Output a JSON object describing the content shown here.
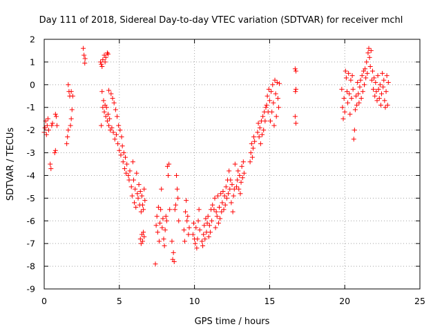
{
  "chart_data": {
    "type": "scatter",
    "title": "Day 111 of 2018, Sidereal Day-to-day VTEC variation (SDTVAR) for receiver mchl",
    "xlabel": "GPS time / hours",
    "ylabel": "SDTVAR / TECUs",
    "xlim": [
      0,
      25
    ],
    "ylim": [
      -9,
      2
    ],
    "xticks": [
      0,
      5,
      10,
      15,
      20,
      25
    ],
    "yticks": [
      2,
      1,
      0,
      -1,
      -2,
      -3,
      -4,
      -5,
      -6,
      -7,
      -8,
      -9
    ],
    "grid": true,
    "marker": "plus",
    "color": "#ff0000",
    "series": [
      {
        "name": "SDTVAR",
        "points": [
          [
            0.0,
            -2.1
          ],
          [
            0.05,
            -1.9
          ],
          [
            0.1,
            -1.6
          ],
          [
            0.15,
            -2.2
          ],
          [
            0.2,
            -1.8
          ],
          [
            0.25,
            -1.5
          ],
          [
            0.3,
            -2.0
          ],
          [
            0.4,
            -3.5
          ],
          [
            0.45,
            -3.7
          ],
          [
            0.5,
            -1.8
          ],
          [
            0.55,
            -1.7
          ],
          [
            0.7,
            -3.0
          ],
          [
            0.75,
            -2.9
          ],
          [
            0.75,
            -1.3
          ],
          [
            0.8,
            -1.4
          ],
          [
            0.85,
            -1.8
          ],
          [
            1.5,
            -2.6
          ],
          [
            1.55,
            -2.3
          ],
          [
            1.6,
            -2.0
          ],
          [
            1.6,
            0.0
          ],
          [
            1.65,
            -0.3
          ],
          [
            1.7,
            -0.5
          ],
          [
            1.75,
            -1.8
          ],
          [
            1.8,
            -1.5
          ],
          [
            1.8,
            -0.3
          ],
          [
            1.85,
            -1.1
          ],
          [
            1.9,
            -0.5
          ],
          [
            2.6,
            1.6
          ],
          [
            2.65,
            1.3
          ],
          [
            2.7,
            0.95
          ],
          [
            2.72,
            1.15
          ],
          [
            3.75,
            1.0
          ],
          [
            3.8,
            0.9
          ],
          [
            3.85,
            0.8
          ],
          [
            3.9,
            1.1
          ],
          [
            4.0,
            1.3
          ],
          [
            4.05,
            1.0
          ],
          [
            4.1,
            1.2
          ],
          [
            4.2,
            1.4
          ],
          [
            4.25,
            1.35
          ],
          [
            3.8,
            -1.8
          ],
          [
            3.85,
            -0.3
          ],
          [
            3.9,
            -1.0
          ],
          [
            3.95,
            -0.7
          ],
          [
            4.0,
            -1.2
          ],
          [
            4.05,
            -0.9
          ],
          [
            4.1,
            -1.4
          ],
          [
            4.15,
            -1.0
          ],
          [
            4.2,
            -1.6
          ],
          [
            4.25,
            -1.3
          ],
          [
            4.3,
            -1.8
          ],
          [
            4.3,
            -0.25
          ],
          [
            4.35,
            -1.5
          ],
          [
            4.4,
            -2.0
          ],
          [
            4.45,
            -0.4
          ],
          [
            4.5,
            -1.9
          ],
          [
            4.55,
            -0.6
          ],
          [
            4.6,
            -2.1
          ],
          [
            4.65,
            -0.8
          ],
          [
            4.7,
            -2.4
          ],
          [
            4.75,
            -1.1
          ],
          [
            4.8,
            -2.2
          ],
          [
            4.85,
            -1.4
          ],
          [
            4.9,
            -2.6
          ],
          [
            4.95,
            -1.8
          ],
          [
            5.0,
            -2.9
          ],
          [
            5.05,
            -2.0
          ],
          [
            5.1,
            -3.1
          ],
          [
            5.15,
            -2.3
          ],
          [
            5.2,
            -2.7
          ],
          [
            5.25,
            -3.4
          ],
          [
            5.3,
            -3.0
          ],
          [
            5.35,
            -3.7
          ],
          [
            5.4,
            -3.2
          ],
          [
            5.45,
            -3.9
          ],
          [
            5.5,
            -3.5
          ],
          [
            5.6,
            -4.0
          ],
          [
            5.65,
            -4.2
          ],
          [
            5.7,
            -3.8
          ],
          [
            5.8,
            -4.5
          ],
          [
            5.85,
            -4.9
          ],
          [
            5.9,
            -3.4
          ],
          [
            5.95,
            -4.2
          ],
          [
            6.0,
            -5.2
          ],
          [
            6.05,
            -4.6
          ],
          [
            6.1,
            -5.4
          ],
          [
            6.15,
            -3.9
          ],
          [
            6.2,
            -4.8
          ],
          [
            6.25,
            -5.0
          ],
          [
            6.3,
            -4.4
          ],
          [
            6.35,
            -5.3
          ],
          [
            6.4,
            -4.7
          ],
          [
            6.45,
            -5.6
          ],
          [
            6.5,
            -4.9
          ],
          [
            6.55,
            -5.3
          ],
          [
            6.6,
            -5.5
          ],
          [
            6.65,
            -4.6
          ],
          [
            6.7,
            -5.1
          ],
          [
            6.4,
            -6.8
          ],
          [
            6.45,
            -7.0
          ],
          [
            6.5,
            -6.6
          ],
          [
            6.55,
            -6.9
          ],
          [
            6.6,
            -6.5
          ],
          [
            6.65,
            -6.7
          ],
          [
            7.4,
            -7.9
          ],
          [
            7.45,
            -6.2
          ],
          [
            7.5,
            -5.8
          ],
          [
            7.55,
            -6.5
          ],
          [
            7.6,
            -5.4
          ],
          [
            7.65,
            -6.9
          ],
          [
            7.7,
            -6.1
          ],
          [
            7.75,
            -5.5
          ],
          [
            7.8,
            -4.6
          ],
          [
            7.85,
            -6.3
          ],
          [
            7.9,
            -5.9
          ],
          [
            7.95,
            -6.8
          ],
          [
            8.0,
            -7.1
          ],
          [
            8.05,
            -6.4
          ],
          [
            8.1,
            -5.8
          ],
          [
            8.15,
            -6.0
          ],
          [
            8.2,
            -3.6
          ],
          [
            8.25,
            -4.0
          ],
          [
            8.3,
            -3.5
          ],
          [
            8.35,
            -5.5
          ],
          [
            8.5,
            -6.9
          ],
          [
            8.55,
            -7.7
          ],
          [
            8.6,
            -7.4
          ],
          [
            8.65,
            -7.8
          ],
          [
            8.7,
            -5.5
          ],
          [
            8.75,
            -5.3
          ],
          [
            8.8,
            -4.0
          ],
          [
            8.85,
            -4.6
          ],
          [
            8.9,
            -5.0
          ],
          [
            8.95,
            -6.0
          ],
          [
            9.3,
            -6.4
          ],
          [
            9.35,
            -6.9
          ],
          [
            9.4,
            -5.6
          ],
          [
            9.45,
            -5.1
          ],
          [
            9.5,
            -6.0
          ],
          [
            9.55,
            -5.8
          ],
          [
            9.6,
            -6.6
          ],
          [
            9.65,
            -6.3
          ],
          [
            9.9,
            -6.6
          ],
          [
            9.95,
            -6.1
          ],
          [
            10.0,
            -6.8
          ],
          [
            10.05,
            -7.0
          ],
          [
            10.1,
            -6.3
          ],
          [
            10.15,
            -7.2
          ],
          [
            10.2,
            -6.8
          ],
          [
            10.25,
            -6.0
          ],
          [
            10.3,
            -5.5
          ],
          [
            10.35,
            -6.4
          ],
          [
            10.5,
            -6.9
          ],
          [
            10.55,
            -7.1
          ],
          [
            10.6,
            -6.6
          ],
          [
            10.65,
            -6.2
          ],
          [
            10.7,
            -6.8
          ],
          [
            10.75,
            -5.9
          ],
          [
            10.8,
            -6.5
          ],
          [
            10.85,
            -6.1
          ],
          [
            10.9,
            -5.8
          ],
          [
            10.95,
            -6.7
          ],
          [
            11.0,
            -6.2
          ],
          [
            11.05,
            -6.5
          ],
          [
            11.1,
            -5.5
          ],
          [
            11.15,
            -6.0
          ],
          [
            11.2,
            -5.3
          ],
          [
            11.3,
            -5.5
          ],
          [
            11.35,
            -5.0
          ],
          [
            11.4,
            -6.3
          ],
          [
            11.45,
            -5.6
          ],
          [
            11.5,
            -5.8
          ],
          [
            11.55,
            -4.9
          ],
          [
            11.6,
            -6.1
          ],
          [
            11.65,
            -5.4
          ],
          [
            11.7,
            -5.9
          ],
          [
            11.75,
            -4.8
          ],
          [
            11.8,
            -5.6
          ],
          [
            11.85,
            -5.2
          ],
          [
            11.9,
            -4.7
          ],
          [
            11.95,
            -5.5
          ],
          [
            12.0,
            -4.9
          ],
          [
            12.05,
            -5.3
          ],
          [
            12.1,
            -4.5
          ],
          [
            12.15,
            -5.0
          ],
          [
            12.2,
            -4.2
          ],
          [
            12.25,
            -4.8
          ],
          [
            12.3,
            -3.8
          ],
          [
            12.35,
            -4.6
          ],
          [
            12.4,
            -4.2
          ],
          [
            12.45,
            -5.2
          ],
          [
            12.5,
            -4.4
          ],
          [
            12.55,
            -5.6
          ],
          [
            12.6,
            -4.9
          ],
          [
            12.65,
            -4.6
          ],
          [
            12.7,
            -3.5
          ],
          [
            12.8,
            -4.5
          ],
          [
            12.85,
            -4.2
          ],
          [
            12.9,
            -3.8
          ],
          [
            12.95,
            -4.6
          ],
          [
            13.0,
            -4.0
          ],
          [
            13.05,
            -4.8
          ],
          [
            13.1,
            -4.3
          ],
          [
            13.15,
            -3.6
          ],
          [
            13.2,
            -4.1
          ],
          [
            13.25,
            -3.4
          ],
          [
            13.3,
            -3.9
          ],
          [
            13.7,
            -3.4
          ],
          [
            13.75,
            -3.0
          ],
          [
            13.8,
            -2.6
          ],
          [
            13.85,
            -3.2
          ],
          [
            13.9,
            -2.8
          ],
          [
            13.95,
            -2.3
          ],
          [
            14.0,
            -2.5
          ],
          [
            14.2,
            -2.1
          ],
          [
            14.25,
            -1.7
          ],
          [
            14.3,
            -2.3
          ],
          [
            14.35,
            -1.9
          ],
          [
            14.4,
            -2.6
          ],
          [
            14.45,
            -1.6
          ],
          [
            14.5,
            -2.2
          ],
          [
            14.55,
            -1.4
          ],
          [
            14.6,
            -2.0
          ],
          [
            14.65,
            -1.2
          ],
          [
            14.7,
            -1.6
          ],
          [
            14.75,
            -1.0
          ],
          [
            14.8,
            -0.9
          ],
          [
            14.85,
            -0.5
          ],
          [
            14.9,
            -1.2
          ],
          [
            14.95,
            -0.2
          ],
          [
            15.0,
            -0.7
          ],
          [
            15.05,
            -1.6
          ],
          [
            15.1,
            -0.3
          ],
          [
            15.15,
            -1.2
          ],
          [
            15.2,
            0.0
          ],
          [
            15.25,
            -0.8
          ],
          [
            15.3,
            -1.8
          ],
          [
            15.35,
            0.2
          ],
          [
            15.4,
            -0.4
          ],
          [
            15.45,
            -1.4
          ],
          [
            15.5,
            0.1
          ],
          [
            15.55,
            -0.6
          ],
          [
            15.6,
            -1.0
          ],
          [
            15.65,
            0.05
          ],
          [
            16.7,
            0.7
          ],
          [
            16.75,
            0.6
          ],
          [
            16.72,
            -0.3
          ],
          [
            16.75,
            -0.2
          ],
          [
            16.7,
            -1.4
          ],
          [
            16.75,
            -1.7
          ],
          [
            19.8,
            -0.2
          ],
          [
            19.85,
            -1.0
          ],
          [
            19.9,
            -1.5
          ],
          [
            19.95,
            -0.6
          ],
          [
            20.0,
            -1.2
          ],
          [
            20.05,
            0.6
          ],
          [
            20.1,
            0.3
          ],
          [
            20.15,
            -0.3
          ],
          [
            20.2,
            -0.8
          ],
          [
            20.25,
            0.5
          ],
          [
            20.3,
            -0.4
          ],
          [
            20.35,
            -1.3
          ],
          [
            20.4,
            0.2
          ],
          [
            20.45,
            -0.6
          ],
          [
            20.5,
            0.4
          ],
          [
            20.55,
            -0.2
          ],
          [
            20.6,
            -2.4
          ],
          [
            20.65,
            -2.0
          ],
          [
            20.7,
            -1.1
          ],
          [
            20.75,
            -0.5
          ],
          [
            20.8,
            -0.9
          ],
          [
            20.85,
            0.1
          ],
          [
            20.9,
            -0.4
          ],
          [
            20.95,
            -0.8
          ],
          [
            21.0,
            -0.1
          ],
          [
            21.05,
            0.2
          ],
          [
            21.1,
            -0.6
          ],
          [
            21.15,
            0.4
          ],
          [
            21.2,
            -0.3
          ],
          [
            21.25,
            0.6
          ],
          [
            21.3,
            0.0
          ],
          [
            21.35,
            0.7
          ],
          [
            21.4,
            0.3
          ],
          [
            21.45,
            1.0
          ],
          [
            21.5,
            0.5
          ],
          [
            21.55,
            1.4
          ],
          [
            21.6,
            1.6
          ],
          [
            21.65,
            1.2
          ],
          [
            21.7,
            0.8
          ],
          [
            21.75,
            1.5
          ],
          [
            21.8,
            0.2
          ],
          [
            21.85,
            0.6
          ],
          [
            21.9,
            -0.2
          ],
          [
            21.95,
            0.3
          ],
          [
            22.0,
            -0.5
          ],
          [
            22.05,
            0.1
          ],
          [
            22.1,
            -0.3
          ],
          [
            22.15,
            -0.7
          ],
          [
            22.2,
            0.4
          ],
          [
            22.25,
            -0.2
          ],
          [
            22.3,
            -0.6
          ],
          [
            22.35,
            0.0
          ],
          [
            22.4,
            -0.9
          ],
          [
            22.45,
            -0.4
          ],
          [
            22.5,
            0.5
          ],
          [
            22.55,
            -0.1
          ],
          [
            22.6,
            0.2
          ],
          [
            22.65,
            -0.7
          ],
          [
            22.7,
            -1.0
          ],
          [
            22.75,
            -0.3
          ],
          [
            22.8,
            0.4
          ],
          [
            22.85,
            -0.9
          ],
          [
            22.9,
            0.1
          ]
        ]
      }
    ]
  }
}
